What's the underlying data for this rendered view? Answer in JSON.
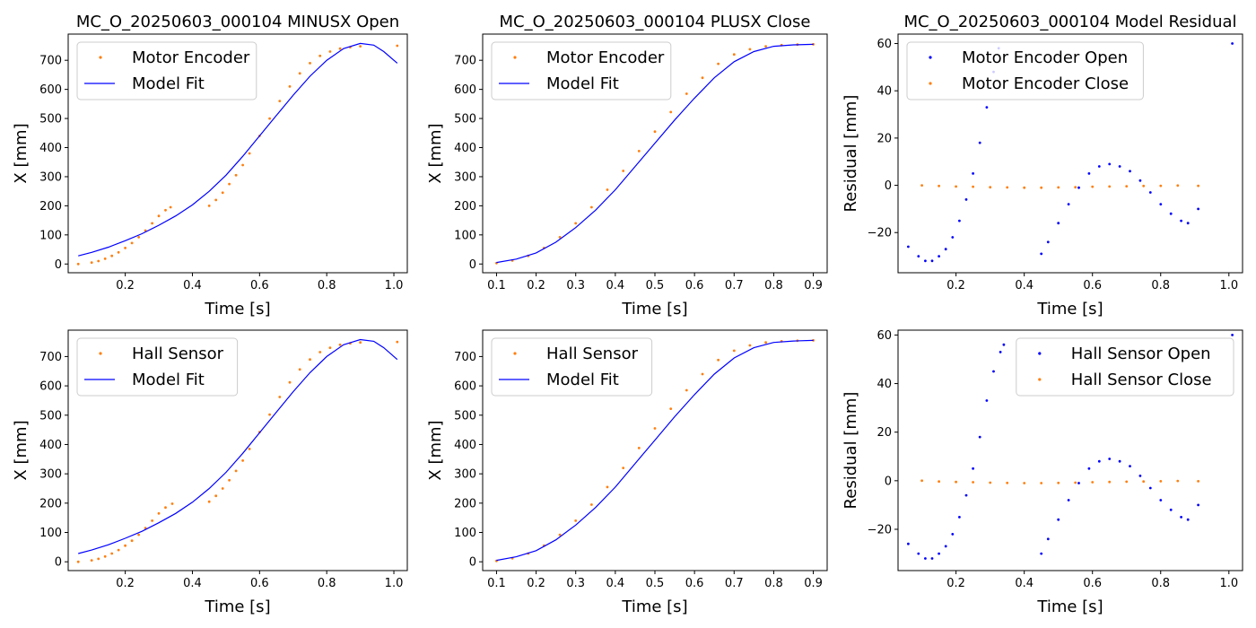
{
  "chart_data": [
    {
      "id": "p1",
      "type": "scatter",
      "title": "MC_O_20250603_000104 MINUSX Open",
      "xlabel": "Time [s]",
      "ylabel": "X [mm]",
      "xlim": [
        0.03,
        1.04
      ],
      "ylim": [
        -30,
        790
      ],
      "xticks": [
        0.2,
        0.4,
        0.6,
        0.8,
        1.0
      ],
      "xtick_labels": [
        "0.2",
        "0.4",
        "0.6",
        "0.8",
        "1.0"
      ],
      "yticks": [
        0,
        100,
        200,
        300,
        400,
        500,
        600,
        700
      ],
      "ytick_labels": [
        "0",
        "100",
        "200",
        "300",
        "400",
        "500",
        "600",
        "700"
      ],
      "legend_position": "upper-left",
      "series": [
        {
          "name": "Motor Encoder",
          "kind": "scatter",
          "color": "#ff7f0e",
          "x": [
            0.06,
            0.1,
            0.12,
            0.14,
            0.16,
            0.18,
            0.2,
            0.22,
            0.24,
            0.26,
            0.28,
            0.3,
            0.32,
            0.335,
            0.45,
            0.47,
            0.49,
            0.51,
            0.53,
            0.55,
            0.57,
            0.6,
            0.63,
            0.66,
            0.69,
            0.72,
            0.75,
            0.78,
            0.81,
            0.84,
            0.87,
            0.9,
            1.01
          ],
          "y": [
            0,
            5,
            10,
            18,
            28,
            40,
            55,
            72,
            92,
            115,
            140,
            165,
            185,
            195,
            200,
            220,
            245,
            275,
            305,
            340,
            380,
            440,
            500,
            560,
            610,
            655,
            690,
            715,
            730,
            740,
            745,
            748,
            750
          ]
        },
        {
          "name": "Model Fit",
          "kind": "line",
          "color": "#0000ff",
          "x": [
            0.06,
            0.1,
            0.15,
            0.2,
            0.25,
            0.3,
            0.35,
            0.4,
            0.45,
            0.5,
            0.55,
            0.6,
            0.65,
            0.7,
            0.75,
            0.8,
            0.85,
            0.9,
            0.94,
            0.97,
            1.01
          ],
          "y": [
            28,
            40,
            58,
            80,
            104,
            133,
            165,
            203,
            250,
            305,
            370,
            440,
            510,
            580,
            645,
            700,
            740,
            758,
            752,
            730,
            690
          ]
        }
      ]
    },
    {
      "id": "p2",
      "type": "scatter",
      "title": "MC_O_20250603_000104 PLUSX Close",
      "xlabel": "Time [s]",
      "ylabel": "X [mm]",
      "xlim": [
        0.065,
        0.935
      ],
      "ylim": [
        -30,
        790
      ],
      "xticks": [
        0.1,
        0.2,
        0.3,
        0.4,
        0.5,
        0.6,
        0.7,
        0.8,
        0.9
      ],
      "xtick_labels": [
        "0.1",
        "0.2",
        "0.3",
        "0.4",
        "0.5",
        "0.6",
        "0.7",
        "0.8",
        "0.9"
      ],
      "yticks": [
        0,
        100,
        200,
        300,
        400,
        500,
        600,
        700
      ],
      "ytick_labels": [
        "0",
        "100",
        "200",
        "300",
        "400",
        "500",
        "600",
        "700"
      ],
      "legend_position": "upper-left",
      "series": [
        {
          "name": "Motor Encoder",
          "kind": "scatter",
          "color": "#ff7f0e",
          "x": [
            0.1,
            0.14,
            0.18,
            0.22,
            0.26,
            0.3,
            0.34,
            0.38,
            0.42,
            0.46,
            0.5,
            0.54,
            0.58,
            0.62,
            0.66,
            0.7,
            0.74,
            0.78,
            0.82,
            0.86,
            0.9
          ],
          "y": [
            3,
            12,
            28,
            55,
            92,
            140,
            195,
            255,
            320,
            388,
            455,
            522,
            585,
            640,
            688,
            720,
            738,
            748,
            752,
            754,
            755
          ]
        },
        {
          "name": "Model Fit",
          "kind": "line",
          "color": "#0000ff",
          "x": [
            0.1,
            0.15,
            0.2,
            0.25,
            0.3,
            0.35,
            0.4,
            0.45,
            0.5,
            0.55,
            0.6,
            0.65,
            0.7,
            0.75,
            0.8,
            0.85,
            0.9
          ],
          "y": [
            5,
            17,
            38,
            75,
            125,
            185,
            255,
            335,
            415,
            495,
            570,
            640,
            695,
            730,
            748,
            753,
            755
          ]
        }
      ]
    },
    {
      "id": "p3",
      "type": "scatter",
      "title": "MC_O_20250603_000104 Model Residual",
      "xlabel": "Time [s]",
      "ylabel": "Residual [mm]",
      "xlim": [
        0.03,
        1.04
      ],
      "ylim": [
        -37,
        64
      ],
      "xticks": [
        0.2,
        0.4,
        0.6,
        0.8,
        1.0
      ],
      "xtick_labels": [
        "0.2",
        "0.4",
        "0.6",
        "0.8",
        "1.0"
      ],
      "yticks": [
        -20,
        0,
        20,
        40,
        60
      ],
      "ytick_labels": [
        "−20",
        "0",
        "20",
        "40",
        "60"
      ],
      "legend_position": "upper-left",
      "series": [
        {
          "name": "Motor Encoder Open",
          "kind": "scatter",
          "color": "#0000ff",
          "x": [
            0.06,
            0.09,
            0.11,
            0.13,
            0.15,
            0.17,
            0.19,
            0.21,
            0.23,
            0.25,
            0.27,
            0.29,
            0.31,
            0.325,
            0.45,
            0.47,
            0.5,
            0.53,
            0.56,
            0.59,
            0.62,
            0.65,
            0.68,
            0.71,
            0.74,
            0.77,
            0.8,
            0.83,
            0.86,
            0.88,
            0.91,
            1.01
          ],
          "y": [
            -26,
            -30,
            -32,
            -32,
            -30,
            -27,
            -22,
            -15,
            -6,
            5,
            18,
            33,
            48,
            58,
            -29,
            -24,
            -16,
            -8,
            -1,
            5,
            8,
            9,
            8,
            6,
            2,
            -3,
            -8,
            -12,
            -15,
            -16,
            -10,
            60
          ]
        },
        {
          "name": "Motor Encoder Close",
          "kind": "scatter",
          "color": "#ff7f0e",
          "x": [
            0.1,
            0.15,
            0.2,
            0.25,
            0.3,
            0.35,
            0.4,
            0.45,
            0.5,
            0.55,
            0.6,
            0.65,
            0.7,
            0.75,
            0.8,
            0.85,
            0.91
          ],
          "y": [
            0,
            -0.3,
            -0.5,
            -0.6,
            -0.8,
            -0.9,
            -1.0,
            -1.0,
            -0.9,
            -0.8,
            -0.6,
            -0.5,
            -0.4,
            -0.3,
            -0.2,
            -0.1,
            -0.2
          ]
        }
      ]
    },
    {
      "id": "p4",
      "type": "scatter",
      "title": "",
      "xlabel": "Time [s]",
      "ylabel": "X [mm]",
      "xlim": [
        0.03,
        1.04
      ],
      "ylim": [
        -30,
        790
      ],
      "xticks": [
        0.2,
        0.4,
        0.6,
        0.8,
        1.0
      ],
      "xtick_labels": [
        "0.2",
        "0.4",
        "0.6",
        "0.8",
        "1.0"
      ],
      "yticks": [
        0,
        100,
        200,
        300,
        400,
        500,
        600,
        700
      ],
      "ytick_labels": [
        "0",
        "100",
        "200",
        "300",
        "400",
        "500",
        "600",
        "700"
      ],
      "legend_position": "upper-left",
      "series": [
        {
          "name": "Hall Sensor",
          "kind": "scatter",
          "color": "#ff7f0e",
          "x": [
            0.06,
            0.1,
            0.12,
            0.14,
            0.16,
            0.18,
            0.2,
            0.22,
            0.24,
            0.26,
            0.28,
            0.3,
            0.32,
            0.34,
            0.45,
            0.47,
            0.49,
            0.51,
            0.53,
            0.55,
            0.57,
            0.6,
            0.63,
            0.66,
            0.69,
            0.72,
            0.75,
            0.78,
            0.81,
            0.84,
            0.87,
            0.9,
            1.01
          ],
          "y": [
            0,
            5,
            10,
            18,
            28,
            40,
            55,
            72,
            92,
            115,
            140,
            165,
            185,
            198,
            205,
            225,
            250,
            278,
            310,
            345,
            385,
            442,
            502,
            562,
            612,
            656,
            690,
            715,
            730,
            740,
            745,
            748,
            750
          ]
        },
        {
          "name": "Model Fit",
          "kind": "line",
          "color": "#0000ff",
          "x": [
            0.06,
            0.1,
            0.15,
            0.2,
            0.25,
            0.3,
            0.35,
            0.4,
            0.45,
            0.5,
            0.55,
            0.6,
            0.65,
            0.7,
            0.75,
            0.8,
            0.85,
            0.9,
            0.94,
            0.97,
            1.01
          ],
          "y": [
            28,
            40,
            58,
            80,
            104,
            133,
            165,
            203,
            250,
            305,
            370,
            440,
            510,
            580,
            645,
            700,
            740,
            758,
            752,
            730,
            690
          ]
        }
      ]
    },
    {
      "id": "p5",
      "type": "scatter",
      "title": "",
      "xlabel": "Time [s]",
      "ylabel": "X [mm]",
      "xlim": [
        0.065,
        0.935
      ],
      "ylim": [
        -30,
        790
      ],
      "xticks": [
        0.1,
        0.2,
        0.3,
        0.4,
        0.5,
        0.6,
        0.7,
        0.8,
        0.9
      ],
      "xtick_labels": [
        "0.1",
        "0.2",
        "0.3",
        "0.4",
        "0.5",
        "0.6",
        "0.7",
        "0.8",
        "0.9"
      ],
      "yticks": [
        0,
        100,
        200,
        300,
        400,
        500,
        600,
        700
      ],
      "ytick_labels": [
        "0",
        "100",
        "200",
        "300",
        "400",
        "500",
        "600",
        "700"
      ],
      "legend_position": "upper-left",
      "series": [
        {
          "name": "Hall Sensor",
          "kind": "scatter",
          "color": "#ff7f0e",
          "x": [
            0.1,
            0.14,
            0.18,
            0.22,
            0.26,
            0.3,
            0.34,
            0.38,
            0.42,
            0.46,
            0.5,
            0.54,
            0.58,
            0.62,
            0.66,
            0.7,
            0.74,
            0.78,
            0.82,
            0.86,
            0.9
          ],
          "y": [
            3,
            12,
            28,
            55,
            92,
            140,
            195,
            255,
            320,
            388,
            455,
            522,
            585,
            640,
            688,
            720,
            738,
            748,
            752,
            754,
            755
          ]
        },
        {
          "name": "Model Fit",
          "kind": "line",
          "color": "#0000ff",
          "x": [
            0.1,
            0.15,
            0.2,
            0.25,
            0.3,
            0.35,
            0.4,
            0.45,
            0.5,
            0.55,
            0.6,
            0.65,
            0.7,
            0.75,
            0.8,
            0.85,
            0.9
          ],
          "y": [
            5,
            17,
            38,
            75,
            125,
            185,
            255,
            335,
            415,
            495,
            570,
            640,
            695,
            730,
            748,
            753,
            755
          ]
        }
      ]
    },
    {
      "id": "p6",
      "type": "scatter",
      "title": "",
      "xlabel": "Time [s]",
      "ylabel": "Residual [mm]",
      "xlim": [
        0.03,
        1.04
      ],
      "ylim": [
        -37,
        62
      ],
      "xticks": [
        0.2,
        0.4,
        0.6,
        0.8,
        1.0
      ],
      "xtick_labels": [
        "0.2",
        "0.4",
        "0.6",
        "0.8",
        "1.0"
      ],
      "yticks": [
        -20,
        0,
        20,
        40,
        60
      ],
      "ytick_labels": [
        "−20",
        "0",
        "20",
        "40",
        "60"
      ],
      "legend_position": "upper-right",
      "series": [
        {
          "name": "Hall Sensor Open",
          "kind": "scatter",
          "color": "#0000ff",
          "x": [
            0.06,
            0.09,
            0.11,
            0.13,
            0.15,
            0.17,
            0.19,
            0.21,
            0.23,
            0.25,
            0.27,
            0.29,
            0.31,
            0.33,
            0.34,
            0.45,
            0.47,
            0.5,
            0.53,
            0.56,
            0.59,
            0.62,
            0.65,
            0.68,
            0.71,
            0.74,
            0.77,
            0.8,
            0.83,
            0.86,
            0.88,
            0.91,
            1.01
          ],
          "y": [
            -26,
            -30,
            -32,
            -32,
            -30,
            -27,
            -22,
            -15,
            -6,
            5,
            18,
            33,
            45,
            53,
            56,
            -30,
            -24,
            -16,
            -8,
            -1,
            5,
            8,
            9,
            8,
            6,
            2,
            -3,
            -8,
            -12,
            -15,
            -16,
            -10,
            60
          ]
        },
        {
          "name": "Hall Sensor Close",
          "kind": "scatter",
          "color": "#ff7f0e",
          "x": [
            0.1,
            0.15,
            0.2,
            0.25,
            0.3,
            0.35,
            0.4,
            0.45,
            0.5,
            0.55,
            0.6,
            0.65,
            0.7,
            0.75,
            0.8,
            0.85,
            0.91
          ],
          "y": [
            0,
            -0.3,
            -0.5,
            -0.6,
            -0.8,
            -0.9,
            -1.0,
            -1.0,
            -0.9,
            -0.8,
            -0.6,
            -0.5,
            -0.4,
            -0.3,
            -0.2,
            -0.1,
            -0.2
          ]
        }
      ]
    }
  ]
}
